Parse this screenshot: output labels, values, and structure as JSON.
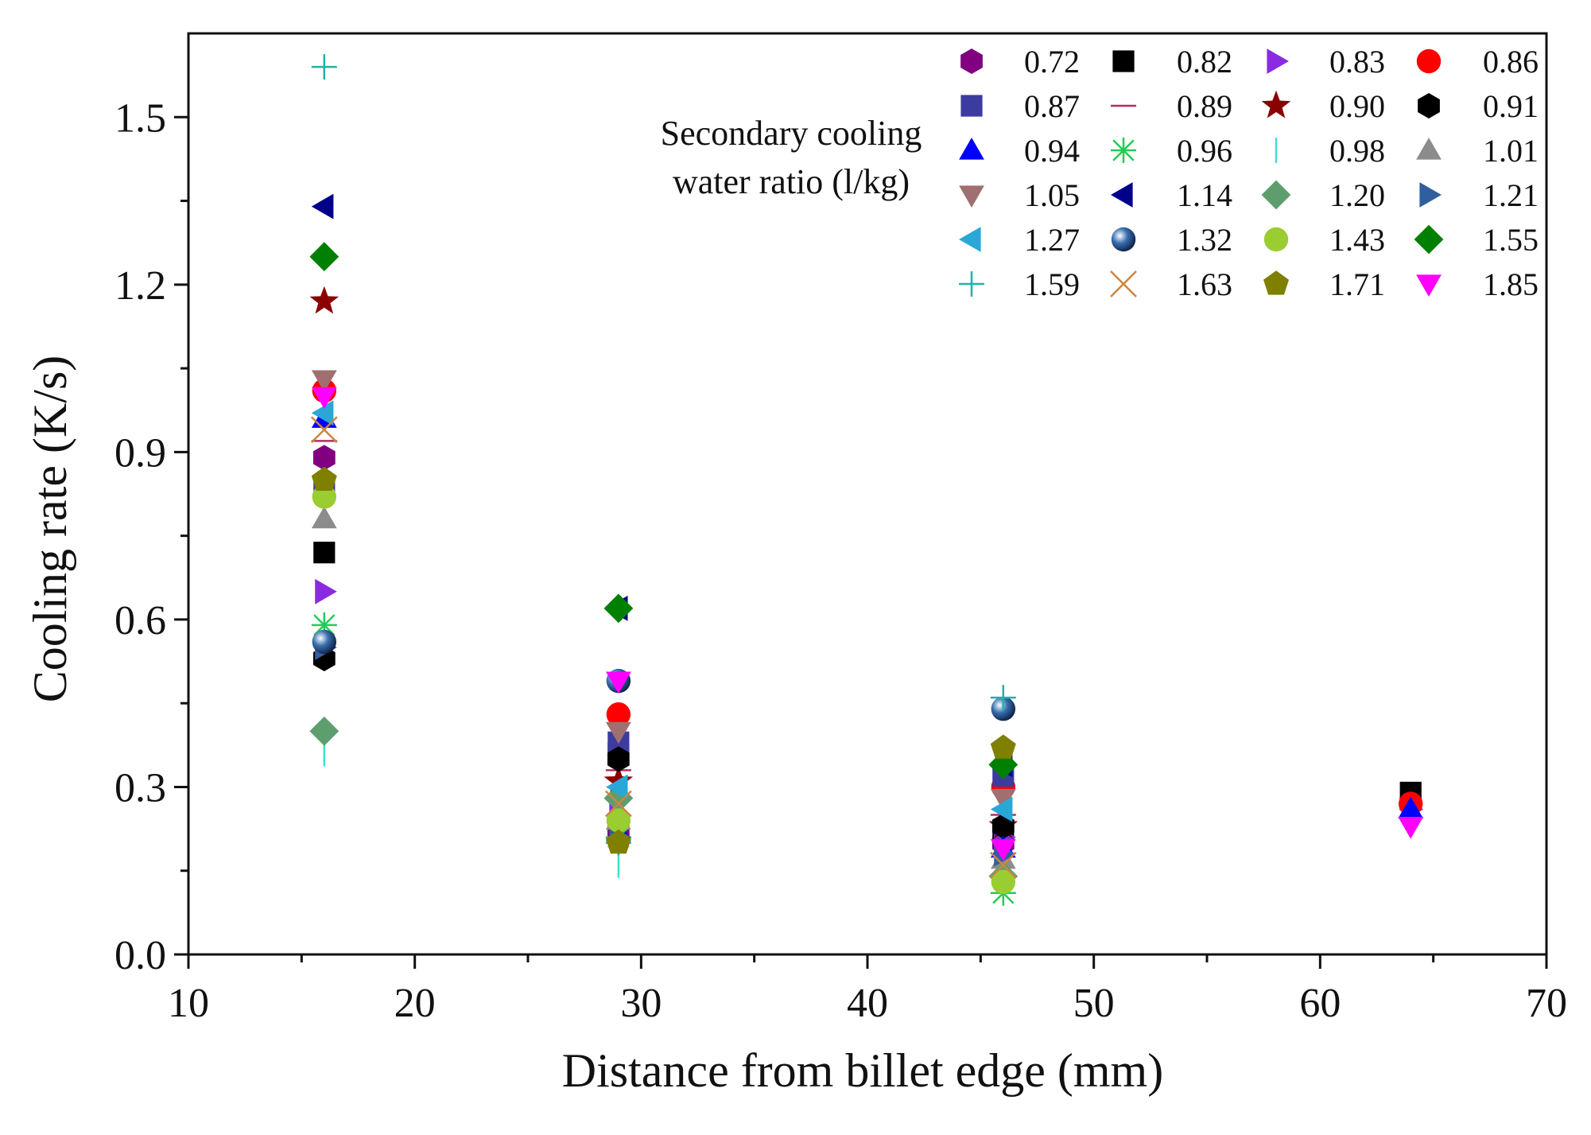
{
  "chart_data": {
    "type": "scatter",
    "title": "",
    "xlabel": "Distance from billet edge (mm)",
    "ylabel": "Cooling rate (K/s)",
    "xlim": [
      10,
      70
    ],
    "ylim": [
      0.0,
      1.65
    ],
    "xticks": [
      10,
      20,
      30,
      40,
      50,
      60,
      70
    ],
    "yticks": [
      0.0,
      0.3,
      0.6,
      0.9,
      1.2,
      1.5
    ],
    "xtick_labels": [
      "10",
      "20",
      "30",
      "40",
      "50",
      "60",
      "70"
    ],
    "ytick_labels": [
      "0.0",
      "0.3",
      "0.6",
      "0.9",
      "1.2",
      "1.5"
    ],
    "grid": false,
    "legend_title": [
      "Secondary cooling",
      "water ratio (l/kg)"
    ],
    "legend_placement": "top-right",
    "series": [
      {
        "name": "0.72",
        "marker": "hexagon",
        "color": "#800080",
        "x": [
          16,
          29,
          46,
          64
        ],
        "y": [
          0.89,
          0.22,
          0.2,
          0.27
        ]
      },
      {
        "name": "0.82",
        "marker": "square",
        "color": "#000000",
        "x": [
          16,
          29,
          46,
          64
        ],
        "y": [
          0.72,
          0.36,
          0.22,
          0.29
        ]
      },
      {
        "name": "0.83",
        "marker": "triangle-right",
        "color": "#8a2be2",
        "x": [
          16,
          29,
          46,
          64
        ],
        "y": [
          0.65,
          0.25,
          0.21,
          0.26
        ]
      },
      {
        "name": "0.86",
        "marker": "circle",
        "color": "#ff0000",
        "x": [
          16,
          29,
          46,
          64
        ],
        "y": [
          1.01,
          0.43,
          0.3,
          0.27
        ]
      },
      {
        "name": "0.87",
        "marker": "square",
        "color": "#3c3ca0",
        "x": [
          16,
          29,
          46
        ],
        "y": [
          0.84,
          0.38,
          0.32
        ]
      },
      {
        "name": "0.89",
        "marker": "dash",
        "color": "#b03060",
        "x": [
          16,
          29,
          46
        ],
        "y": [
          0.92,
          0.33,
          0.25
        ]
      },
      {
        "name": "0.90",
        "marker": "star",
        "color": "#8b0000",
        "x": [
          16,
          29,
          46
        ],
        "y": [
          1.17,
          0.31,
          0.23
        ]
      },
      {
        "name": "0.91",
        "marker": "hexagon",
        "color": "#000000",
        "x": [
          16,
          29,
          46
        ],
        "y": [
          0.53,
          0.35,
          0.23
        ]
      },
      {
        "name": "0.94",
        "marker": "triangle-up",
        "color": "#0000ff",
        "x": [
          16,
          29,
          46,
          64
        ],
        "y": [
          0.96,
          0.22,
          0.19,
          0.26
        ]
      },
      {
        "name": "0.96",
        "marker": "asterisk",
        "color": "#22cc55",
        "x": [
          16,
          29,
          46
        ],
        "y": [
          0.59,
          0.21,
          0.11
        ]
      },
      {
        "name": "0.98",
        "marker": "vline",
        "color": "#40e0d0",
        "x": [
          16,
          29,
          46
        ],
        "y": [
          0.36,
          0.16,
          0.15
        ]
      },
      {
        "name": "1.01",
        "marker": "triangle-up",
        "color": "#8c8c8c",
        "x": [
          16,
          29,
          46
        ],
        "y": [
          0.78,
          0.24,
          0.17
        ]
      },
      {
        "name": "1.05",
        "marker": "triangle-down",
        "color": "#a07070",
        "x": [
          16,
          29,
          46
        ],
        "y": [
          1.03,
          0.4,
          0.28
        ]
      },
      {
        "name": "1.14",
        "marker": "triangle-left",
        "color": "#00008b",
        "x": [
          16,
          29,
          46
        ],
        "y": [
          1.34,
          0.62,
          0.34
        ]
      },
      {
        "name": "1.20",
        "marker": "diamond",
        "color": "#5e9e6e",
        "x": [
          16,
          29,
          46
        ],
        "y": [
          0.4,
          0.28,
          0.14
        ]
      },
      {
        "name": "1.21",
        "marker": "triangle-right",
        "color": "#2f5f9f",
        "x": [
          16,
          29,
          46
        ],
        "y": [
          0.55,
          0.21,
          0.18
        ]
      },
      {
        "name": "1.27",
        "marker": "triangle-left",
        "color": "#29a8d8",
        "x": [
          16,
          29,
          46
        ],
        "y": [
          0.97,
          0.3,
          0.26
        ]
      },
      {
        "name": "1.32",
        "marker": "ball",
        "color": "#3a6fb0",
        "x": [
          16,
          29,
          46
        ],
        "y": [
          0.56,
          0.49,
          0.44
        ]
      },
      {
        "name": "1.43",
        "marker": "circle",
        "color": "#9acd32",
        "x": [
          16,
          29,
          46
        ],
        "y": [
          0.82,
          0.24,
          0.13
        ]
      },
      {
        "name": "1.55",
        "marker": "diamond",
        "color": "#008000",
        "x": [
          16,
          29,
          46
        ],
        "y": [
          1.25,
          0.62,
          0.34
        ]
      },
      {
        "name": "1.59",
        "marker": "plus",
        "color": "#20b2aa",
        "x": [
          16,
          29,
          46
        ],
        "y": [
          1.59,
          0.2,
          0.46
        ]
      },
      {
        "name": "1.63",
        "marker": "cross",
        "color": "#cd853f",
        "x": [
          16,
          29,
          46
        ],
        "y": [
          0.94,
          0.27,
          0.16
        ]
      },
      {
        "name": "1.71",
        "marker": "pentagon",
        "color": "#7f7f00",
        "x": [
          16,
          29,
          46
        ],
        "y": [
          0.85,
          0.2,
          0.37
        ]
      },
      {
        "name": "1.85",
        "marker": "triangle-down",
        "color": "#ff00ff",
        "x": [
          16,
          29,
          46,
          64
        ],
        "y": [
          1.0,
          0.49,
          0.19,
          0.23
        ]
      }
    ]
  }
}
